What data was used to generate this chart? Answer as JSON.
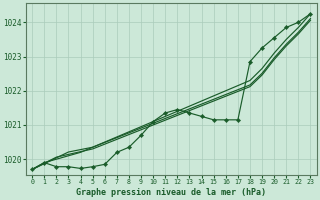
{
  "background_color": "#cce8d8",
  "plot_bg_color": "#cce8d8",
  "grid_color": "#aaccbb",
  "line_color": "#1a5c2a",
  "title": "Graphe pression niveau de la mer (hPa)",
  "xlim": [
    -0.5,
    23.5
  ],
  "ylim": [
    1019.55,
    1024.55
  ],
  "yticks": [
    1020,
    1021,
    1022,
    1023,
    1024
  ],
  "xticks": [
    0,
    1,
    2,
    3,
    4,
    5,
    6,
    7,
    8,
    9,
    10,
    11,
    12,
    13,
    14,
    15,
    16,
    17,
    18,
    19,
    20,
    21,
    22,
    23
  ],
  "trend1_x": [
    0,
    1,
    2,
    3,
    4,
    5,
    6,
    7,
    8,
    9,
    10,
    11,
    12,
    13,
    14,
    15,
    16,
    17,
    18,
    19,
    20,
    21,
    22,
    23
  ],
  "trend1_y": [
    1019.7,
    1019.9,
    1020.0,
    1020.1,
    1020.2,
    1020.35,
    1020.5,
    1020.65,
    1020.8,
    1020.95,
    1021.1,
    1021.25,
    1021.4,
    1021.55,
    1021.7,
    1021.85,
    1022.0,
    1022.15,
    1022.3,
    1022.65,
    1023.1,
    1023.5,
    1023.85,
    1024.25
  ],
  "trend2_x": [
    0,
    1,
    2,
    3,
    4,
    5,
    6,
    7,
    8,
    9,
    10,
    11,
    12,
    13,
    14,
    15,
    16,
    17,
    18,
    19,
    20,
    21,
    22,
    23
  ],
  "trend2_y": [
    1019.7,
    1019.87,
    1020.04,
    1020.21,
    1020.28,
    1020.35,
    1020.49,
    1020.63,
    1020.77,
    1020.91,
    1021.05,
    1021.19,
    1021.33,
    1021.47,
    1021.61,
    1021.75,
    1021.89,
    1022.03,
    1022.17,
    1022.51,
    1022.96,
    1023.36,
    1023.71,
    1024.11
  ],
  "trend3_x": [
    0,
    1,
    2,
    3,
    4,
    5,
    6,
    7,
    8,
    9,
    10,
    11,
    12,
    13,
    14,
    15,
    16,
    17,
    18,
    19,
    20,
    21,
    22,
    23
  ],
  "trend3_y": [
    1019.7,
    1019.88,
    1020.06,
    1020.14,
    1020.22,
    1020.3,
    1020.44,
    1020.58,
    1020.72,
    1020.86,
    1021.0,
    1021.14,
    1021.28,
    1021.42,
    1021.56,
    1021.7,
    1021.84,
    1021.98,
    1022.12,
    1022.46,
    1022.91,
    1023.31,
    1023.66,
    1024.06
  ],
  "wavy_x": [
    0,
    1,
    2,
    3,
    4,
    5,
    6,
    7,
    8,
    9,
    10,
    11,
    12,
    13,
    14,
    15,
    16,
    17,
    18,
    19,
    20,
    21,
    22,
    23
  ],
  "wavy_y": [
    1019.7,
    1019.9,
    1019.78,
    1019.78,
    1019.73,
    1019.78,
    1019.85,
    1020.2,
    1020.35,
    1020.7,
    1021.1,
    1021.35,
    1021.45,
    1021.35,
    1021.25,
    1021.15,
    1021.15,
    1021.15,
    1022.85,
    1023.25,
    1023.55,
    1023.85,
    1024.0,
    1024.25
  ]
}
